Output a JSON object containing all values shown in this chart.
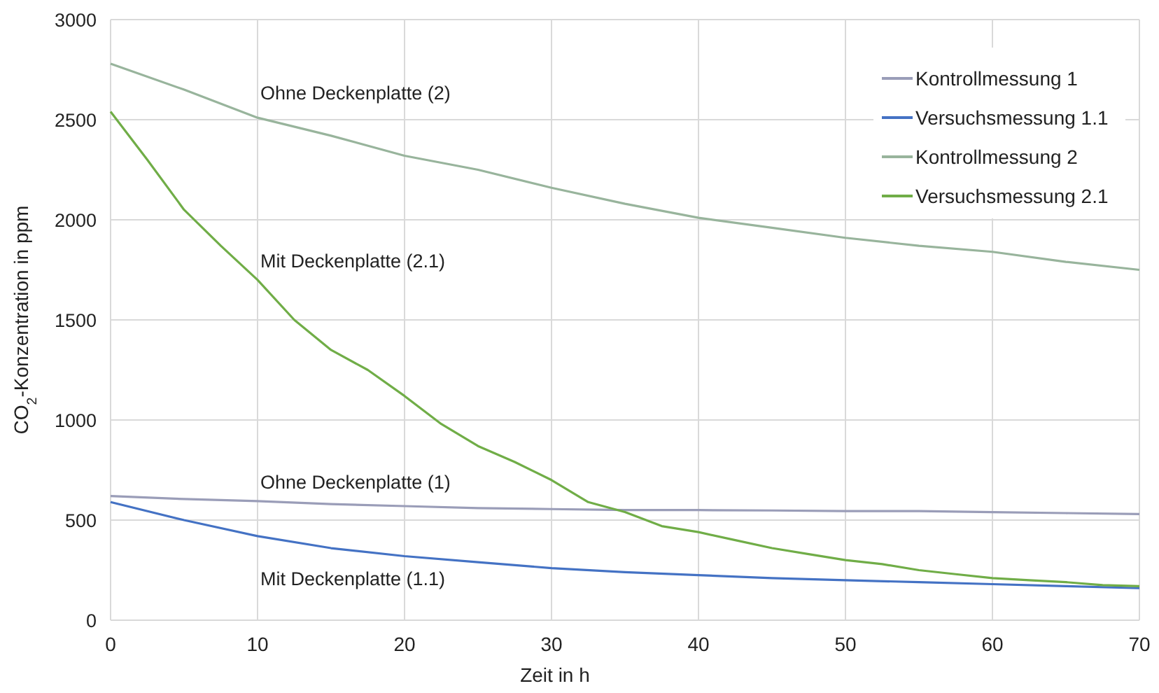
{
  "chart_data": {
    "type": "line",
    "xlabel": "Zeit in h",
    "ylabel": "CO$_{2}$-Konzentration in ppm",
    "xlim": [
      0,
      70
    ],
    "xticks": [
      0,
      10,
      20,
      30,
      40,
      50,
      60,
      70
    ],
    "ylim": [
      0,
      3000
    ],
    "yticks": [
      0,
      500,
      1000,
      1500,
      2000,
      2500,
      3000
    ],
    "grid": true,
    "legend": "top right",
    "line_style": "solid",
    "marker": "none",
    "series": [
      {
        "name": "Kontrollmessung 1",
        "color": "#9a9db8",
        "x": [
          0,
          5,
          10,
          15,
          20,
          25,
          30,
          35,
          40,
          45,
          50,
          55,
          60,
          65,
          70
        ],
        "values": [
          620,
          605,
          595,
          580,
          570,
          560,
          555,
          550,
          550,
          548,
          545,
          545,
          540,
          535,
          530
        ]
      },
      {
        "name": "Versuchsmessung 1.1",
        "color": "#4472c4",
        "x": [
          0,
          5,
          10,
          15,
          20,
          25,
          30,
          35,
          40,
          45,
          50,
          55,
          60,
          65,
          70
        ],
        "values": [
          590,
          500,
          420,
          360,
          320,
          290,
          260,
          240,
          225,
          210,
          200,
          190,
          180,
          170,
          160
        ]
      },
      {
        "name": "Kontrollmessung 2",
        "color": "#98b49c",
        "x": [
          0,
          5,
          10,
          15,
          20,
          25,
          30,
          35,
          40,
          45,
          50,
          55,
          60,
          65,
          70
        ],
        "values": [
          2780,
          2650,
          2510,
          2420,
          2320,
          2250,
          2160,
          2080,
          2010,
          1960,
          1910,
          1870,
          1840,
          1790,
          1750
        ]
      },
      {
        "name": "Versuchsmessung 2.1",
        "color": "#70ad47",
        "x": [
          0,
          2.5,
          5,
          7.5,
          10,
          12.5,
          15,
          17.5,
          20,
          22.5,
          25,
          27.5,
          30,
          32.5,
          35,
          37.5,
          40,
          42.5,
          45,
          47.5,
          50,
          52.5,
          55,
          57.5,
          60,
          62.5,
          65,
          67.5,
          70
        ],
        "values": [
          2540,
          2300,
          2050,
          1870,
          1700,
          1500,
          1350,
          1250,
          1120,
          980,
          870,
          790,
          700,
          590,
          540,
          470,
          440,
          400,
          360,
          330,
          300,
          280,
          250,
          230,
          210,
          200,
          190,
          175,
          170
        ]
      }
    ],
    "annotations": [
      "Ohne Deckenplatte (2)",
      "Mit Deckenplatte (2.1)",
      "Ohne Deckenplatte (1)",
      "Mit Deckenplatte (1.1)"
    ]
  }
}
